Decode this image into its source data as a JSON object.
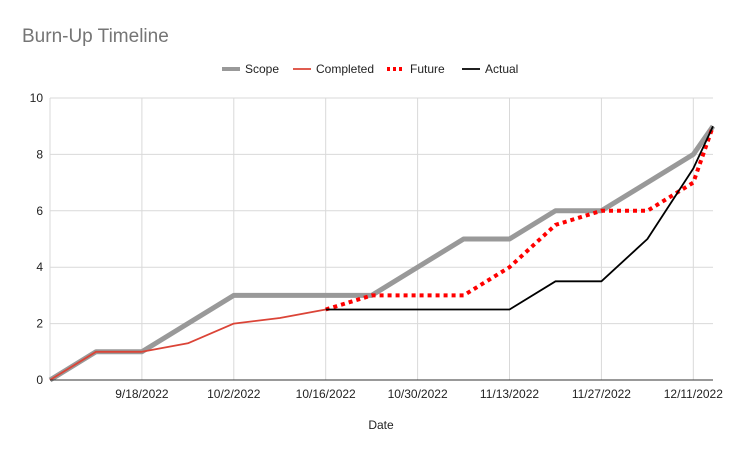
{
  "chart_data": {
    "type": "line",
    "title": "Burn-Up Timeline",
    "xlabel": "Date",
    "ylabel": "",
    "x_tick_labels": [
      "9/18/2022",
      "10/2/2022",
      "10/16/2022",
      "10/30/2022",
      "11/13/2022",
      "11/27/2022",
      "12/11/2022"
    ],
    "x_range": [
      "9/4/2022",
      "12/14/2022"
    ],
    "y_ticks": [
      0,
      2,
      4,
      6,
      8,
      10
    ],
    "ylim": [
      0,
      10
    ],
    "grid": true,
    "legend_position": "top",
    "series": [
      {
        "name": "Scope",
        "color": "#999999",
        "style": "solid-thick",
        "points": [
          {
            "x": "9/4/2022",
            "y": 0
          },
          {
            "x": "9/11/2022",
            "y": 1
          },
          {
            "x": "9/18/2022",
            "y": 1
          },
          {
            "x": "10/2/2022",
            "y": 3
          },
          {
            "x": "10/23/2022",
            "y": 3
          },
          {
            "x": "11/6/2022",
            "y": 5
          },
          {
            "x": "11/13/2022",
            "y": 5
          },
          {
            "x": "11/20/2022",
            "y": 6
          },
          {
            "x": "11/27/2022",
            "y": 6
          },
          {
            "x": "12/11/2022",
            "y": 8
          },
          {
            "x": "12/14/2022",
            "y": 9
          }
        ]
      },
      {
        "name": "Completed",
        "color": "#db4437",
        "style": "solid",
        "points": [
          {
            "x": "9/4/2022",
            "y": 0
          },
          {
            "x": "9/11/2022",
            "y": 1
          },
          {
            "x": "9/18/2022",
            "y": 1
          },
          {
            "x": "9/25/2022",
            "y": 1.3
          },
          {
            "x": "10/2/2022",
            "y": 2
          },
          {
            "x": "10/9/2022",
            "y": 2.2
          },
          {
            "x": "10/16/2022",
            "y": 2.5
          }
        ]
      },
      {
        "name": "Future",
        "color": "#ff0000",
        "style": "dotted",
        "points": [
          {
            "x": "10/16/2022",
            "y": 2.5
          },
          {
            "x": "10/23/2022",
            "y": 3
          },
          {
            "x": "11/6/2022",
            "y": 3
          },
          {
            "x": "11/13/2022",
            "y": 4
          },
          {
            "x": "11/20/2022",
            "y": 5.5
          },
          {
            "x": "11/27/2022",
            "y": 6
          },
          {
            "x": "12/4/2022",
            "y": 6
          },
          {
            "x": "12/11/2022",
            "y": 7
          },
          {
            "x": "12/14/2022",
            "y": 9
          }
        ]
      },
      {
        "name": "Actual",
        "color": "#000000",
        "style": "solid",
        "points": [
          {
            "x": "10/16/2022",
            "y": 2.5
          },
          {
            "x": "11/13/2022",
            "y": 2.5
          },
          {
            "x": "11/20/2022",
            "y": 3.5
          },
          {
            "x": "11/27/2022",
            "y": 3.5
          },
          {
            "x": "12/4/2022",
            "y": 5
          },
          {
            "x": "12/11/2022",
            "y": 7.5
          },
          {
            "x": "12/14/2022",
            "y": 9
          }
        ]
      }
    ]
  }
}
